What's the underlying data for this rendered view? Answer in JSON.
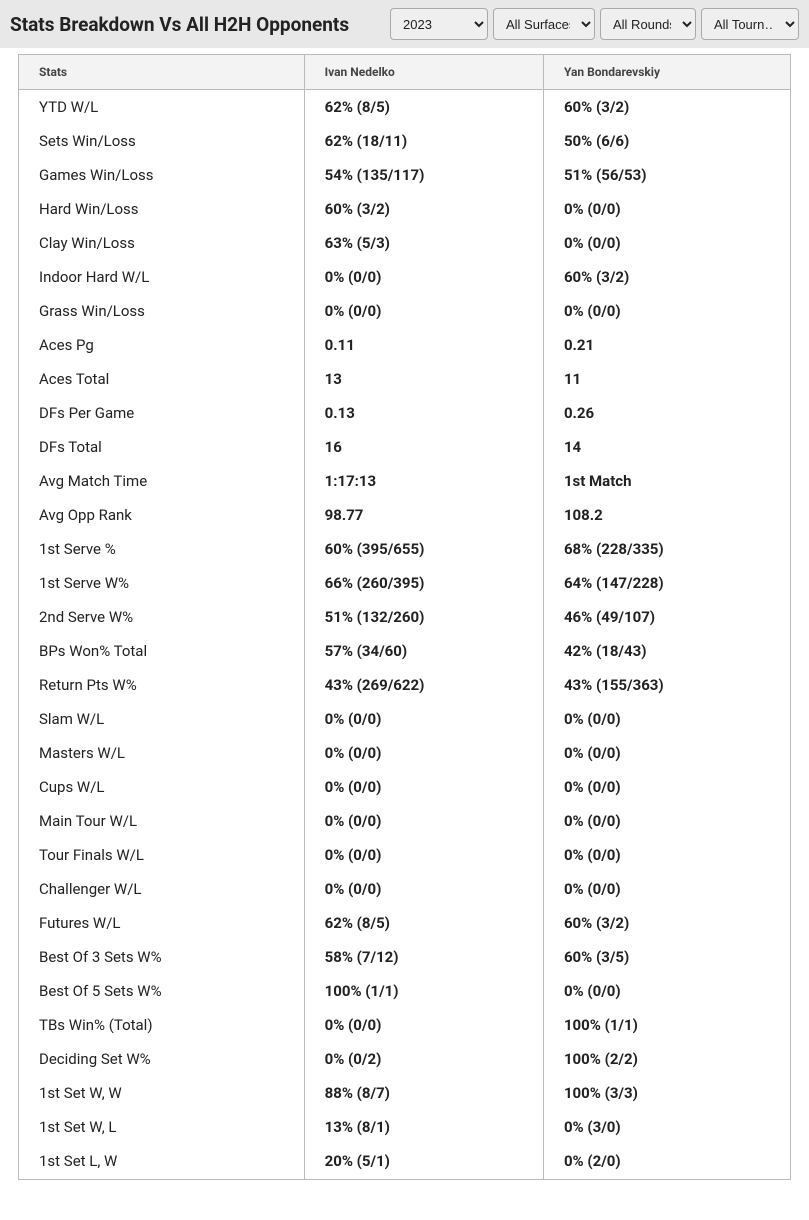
{
  "header": {
    "title": "Stats Breakdown Vs All H2H Opponents"
  },
  "filters": {
    "year": "2023",
    "surface": "All Surfaces",
    "round": "All Rounds",
    "tournament": "All Tourn…"
  },
  "table": {
    "columns": [
      "Stats",
      "Ivan Nedelko",
      "Yan Bondarevskiy"
    ],
    "rows": [
      [
        "YTD W/L",
        "62% (8/5)",
        "60% (3/2)"
      ],
      [
        "Sets Win/Loss",
        "62% (18/11)",
        "50% (6/6)"
      ],
      [
        "Games Win/Loss",
        "54% (135/117)",
        "51% (56/53)"
      ],
      [
        "Hard Win/Loss",
        "60% (3/2)",
        "0% (0/0)"
      ],
      [
        "Clay Win/Loss",
        "63% (5/3)",
        "0% (0/0)"
      ],
      [
        "Indoor Hard W/L",
        "0% (0/0)",
        "60% (3/2)"
      ],
      [
        "Grass Win/Loss",
        "0% (0/0)",
        "0% (0/0)"
      ],
      [
        "Aces Pg",
        "0.11",
        "0.21"
      ],
      [
        "Aces Total",
        "13",
        "11"
      ],
      [
        "DFs Per Game",
        "0.13",
        "0.26"
      ],
      [
        "DFs Total",
        "16",
        "14"
      ],
      [
        "Avg Match Time",
        "1:17:13",
        "1st Match"
      ],
      [
        "Avg Opp Rank",
        "98.77",
        "108.2"
      ],
      [
        "1st Serve %",
        "60% (395/655)",
        "68% (228/335)"
      ],
      [
        "1st Serve W%",
        "66% (260/395)",
        "64% (147/228)"
      ],
      [
        "2nd Serve W%",
        "51% (132/260)",
        "46% (49/107)"
      ],
      [
        "BPs Won% Total",
        "57% (34/60)",
        "42% (18/43)"
      ],
      [
        "Return Pts W%",
        "43% (269/622)",
        "43% (155/363)"
      ],
      [
        "Slam W/L",
        "0% (0/0)",
        "0% (0/0)"
      ],
      [
        "Masters W/L",
        "0% (0/0)",
        "0% (0/0)"
      ],
      [
        "Cups W/L",
        "0% (0/0)",
        "0% (0/0)"
      ],
      [
        "Main Tour W/L",
        "0% (0/0)",
        "0% (0/0)"
      ],
      [
        "Tour Finals W/L",
        "0% (0/0)",
        "0% (0/0)"
      ],
      [
        "Challenger W/L",
        "0% (0/0)",
        "0% (0/0)"
      ],
      [
        "Futures W/L",
        "62% (8/5)",
        "60% (3/2)"
      ],
      [
        "Best Of 3 Sets W%",
        "58% (7/12)",
        "60% (3/5)"
      ],
      [
        "Best Of 5 Sets W%",
        "100% (1/1)",
        "0% (0/0)"
      ],
      [
        "TBs Win% (Total)",
        "0% (0/0)",
        "100% (1/1)"
      ],
      [
        "Deciding Set W%",
        "0% (0/2)",
        "100% (2/2)"
      ],
      [
        "1st Set W, W",
        "88% (8/7)",
        "100% (3/3)"
      ],
      [
        "1st Set W, L",
        "13% (8/1)",
        "0% (3/0)"
      ],
      [
        "1st Set L, W",
        "20% (5/1)",
        "0% (2/0)"
      ]
    ]
  }
}
